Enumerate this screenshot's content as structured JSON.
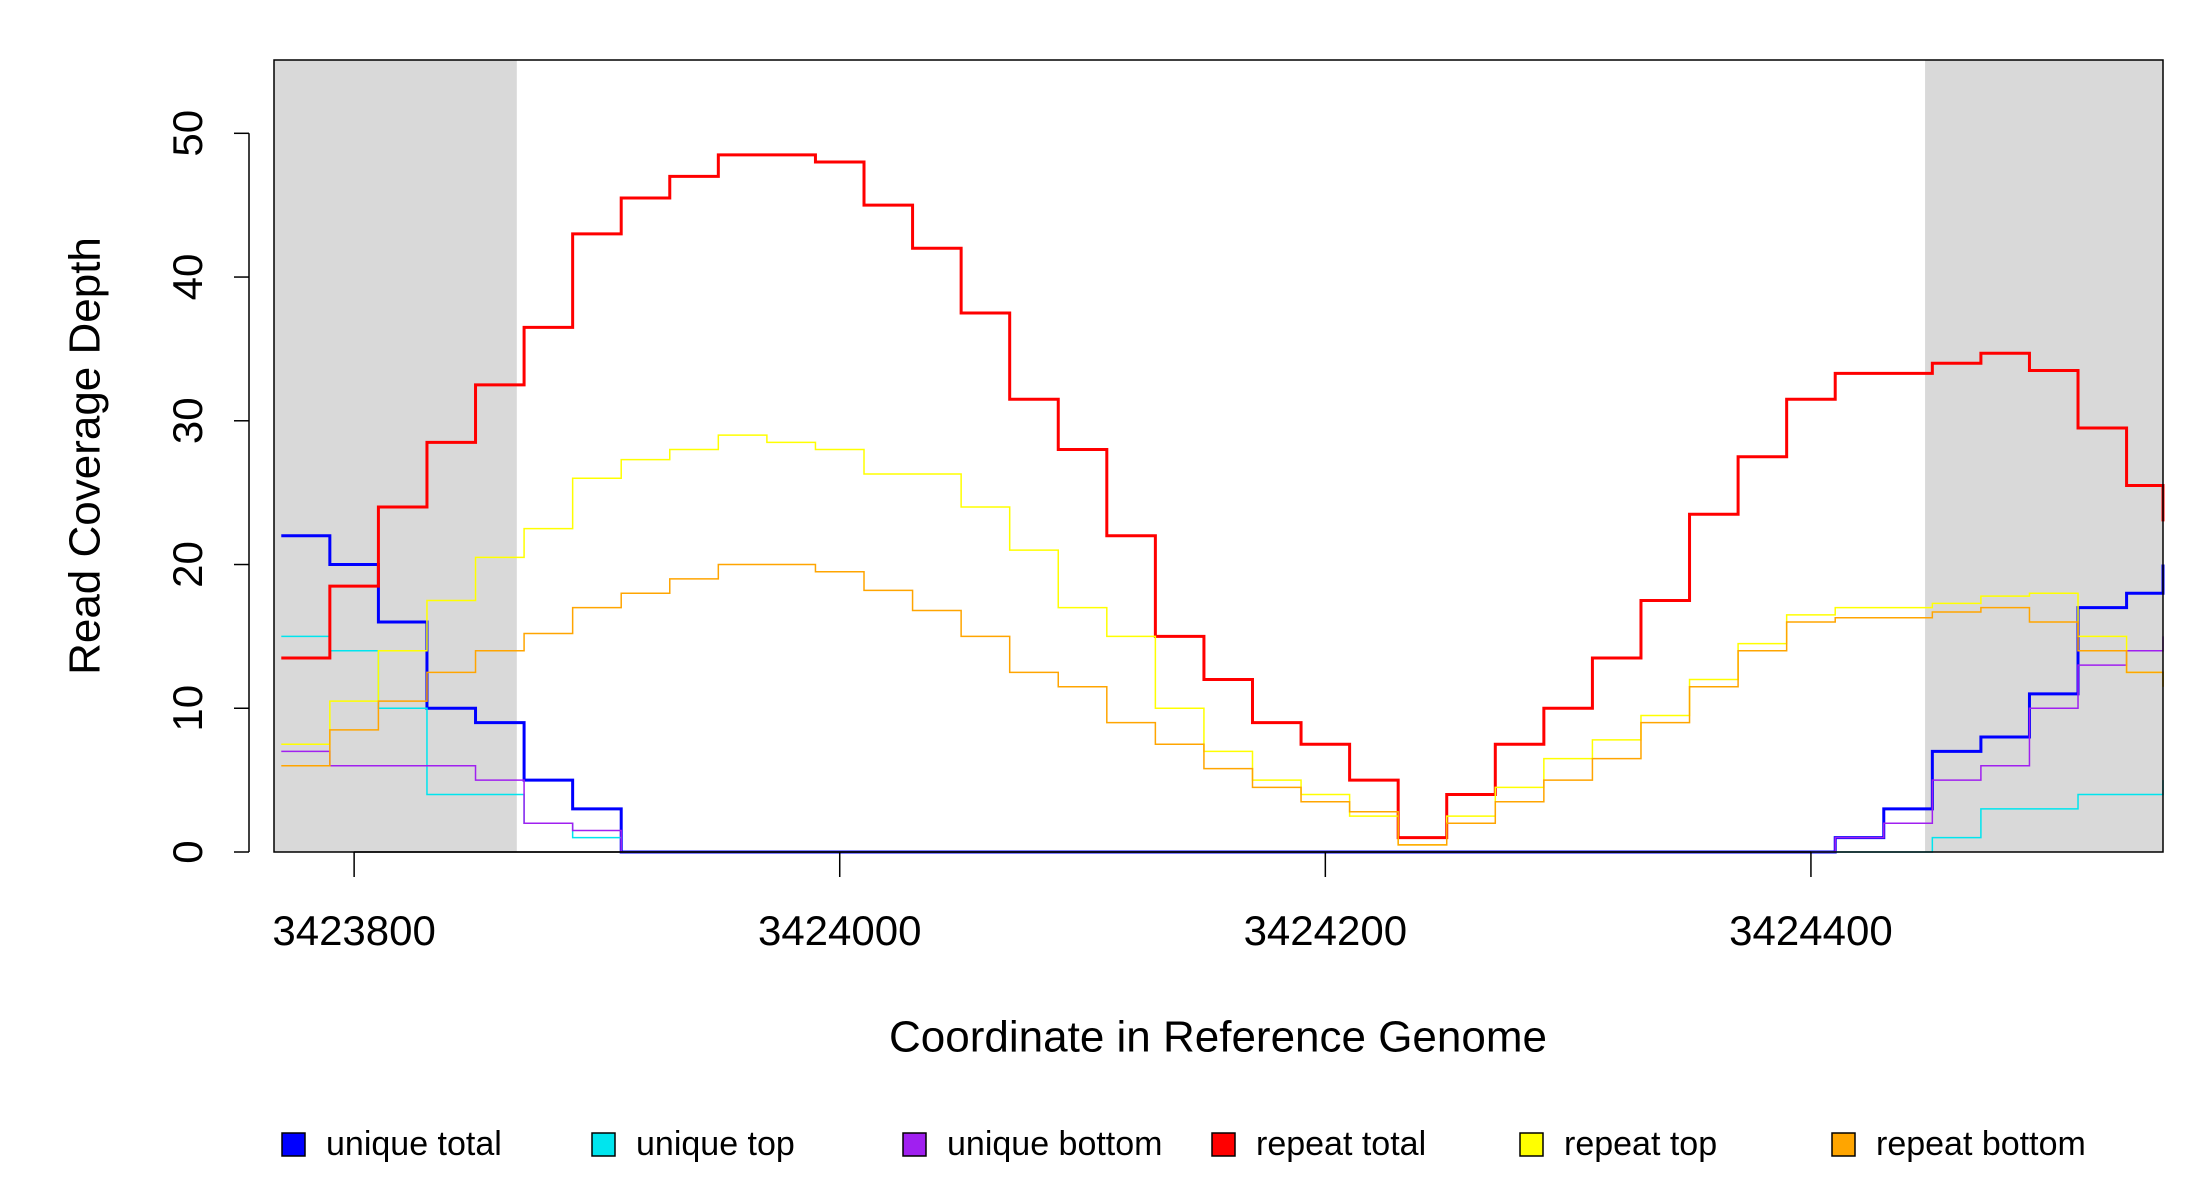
{
  "chart_data": {
    "type": "line",
    "steps": true,
    "x_label": "Coordinate in Reference Genome",
    "y_label": "Read Coverage Depth",
    "xlim": [
      3423767,
      3424545
    ],
    "ylim": [
      0,
      55.1
    ],
    "xticks": [
      3423800,
      3424000,
      3424200,
      3424400
    ],
    "yticks": [
      0,
      10,
      20,
      30,
      40,
      50
    ],
    "grid": false,
    "legend": "bottom",
    "shaded_regions": [
      [
        3423767,
        3423867
      ],
      [
        3424447,
        3424545
      ]
    ],
    "shade_color": "#d9d9d9",
    "x": [
      3423770,
      3423790,
      3423810,
      3423830,
      3423850,
      3423870,
      3423890,
      3423910,
      3423930,
      3423950,
      3423970,
      3423990,
      3424010,
      3424030,
      3424050,
      3424070,
      3424090,
      3424110,
      3424130,
      3424150,
      3424170,
      3424190,
      3424210,
      3424230,
      3424250,
      3424270,
      3424290,
      3424310,
      3424330,
      3424350,
      3424370,
      3424390,
      3424410,
      3424430,
      3424450,
      3424470,
      3424490,
      3424510,
      3424530,
      3424545
    ],
    "series": [
      {
        "name": "unique total",
        "color": "#0000ff",
        "width": 3,
        "values": [
          22,
          20,
          16,
          10,
          9,
          5,
          3,
          0,
          0,
          0,
          0,
          0,
          0,
          0,
          0,
          0,
          0,
          0,
          0,
          0,
          0,
          0,
          0,
          0,
          0,
          0,
          0,
          0,
          0,
          0,
          0,
          0,
          1,
          3,
          7,
          8,
          11,
          17,
          18,
          20
        ]
      },
      {
        "name": "unique top",
        "color": "#00e5ee",
        "width": 1.5,
        "values": [
          15,
          14,
          10,
          4,
          4,
          2,
          1,
          0,
          0,
          0,
          0,
          0,
          0,
          0,
          0,
          0,
          0,
          0,
          0,
          0,
          0,
          0,
          0,
          0,
          0,
          0,
          0,
          0,
          0,
          0,
          0,
          0,
          0,
          0,
          1,
          3,
          3,
          4,
          4,
          5
        ]
      },
      {
        "name": "unique bottom",
        "color": "#a020f0",
        "width": 1.5,
        "values": [
          7,
          6,
          6,
          6,
          5,
          2,
          1.5,
          0,
          0,
          0,
          0,
          0,
          0,
          0,
          0,
          0,
          0,
          0,
          0,
          0,
          0,
          0,
          0,
          0,
          0,
          0,
          0,
          0,
          0,
          0,
          0,
          0,
          1,
          2,
          5,
          6,
          10,
          13,
          14,
          15
        ]
      },
      {
        "name": "repeat total",
        "color": "#ff0000",
        "width": 3,
        "values": [
          13.5,
          18.5,
          24,
          28.5,
          32.5,
          36.5,
          43,
          45.5,
          47,
          48.5,
          48.5,
          48,
          45,
          42,
          37.5,
          31.5,
          28,
          22,
          15,
          12,
          9,
          7.5,
          5,
          1,
          4,
          7.5,
          10,
          13.5,
          17.5,
          23.5,
          27.5,
          31.5,
          33.3,
          33.3,
          34,
          34.7,
          33.5,
          29.5,
          25.5,
          23
        ]
      },
      {
        "name": "repeat top",
        "color": "#ffff00",
        "width": 1.5,
        "values": [
          7.5,
          10.5,
          14,
          17.5,
          20.5,
          22.5,
          26,
          27.3,
          28,
          29,
          28.5,
          28,
          26.3,
          26.3,
          24,
          21,
          17,
          15,
          10,
          7,
          5,
          4,
          2.5,
          0.5,
          2.5,
          4.5,
          6.5,
          7.8,
          9.5,
          12,
          14.5,
          16.5,
          17,
          17,
          17.3,
          17.8,
          18,
          15,
          12.5,
          11.5
        ]
      },
      {
        "name": "repeat bottom",
        "color": "#ffa500",
        "width": 1.5,
        "values": [
          6,
          8.5,
          10.5,
          12.5,
          14,
          15.2,
          17,
          18,
          19,
          20,
          20,
          19.5,
          18.2,
          16.8,
          15,
          12.5,
          11.5,
          9,
          7.5,
          5.8,
          4.5,
          3.5,
          2.8,
          0.5,
          2,
          3.5,
          5,
          6.5,
          9,
          11.5,
          14,
          16,
          16.3,
          16.3,
          16.7,
          17,
          16,
          14,
          12.5,
          11.5
        ]
      }
    ]
  }
}
